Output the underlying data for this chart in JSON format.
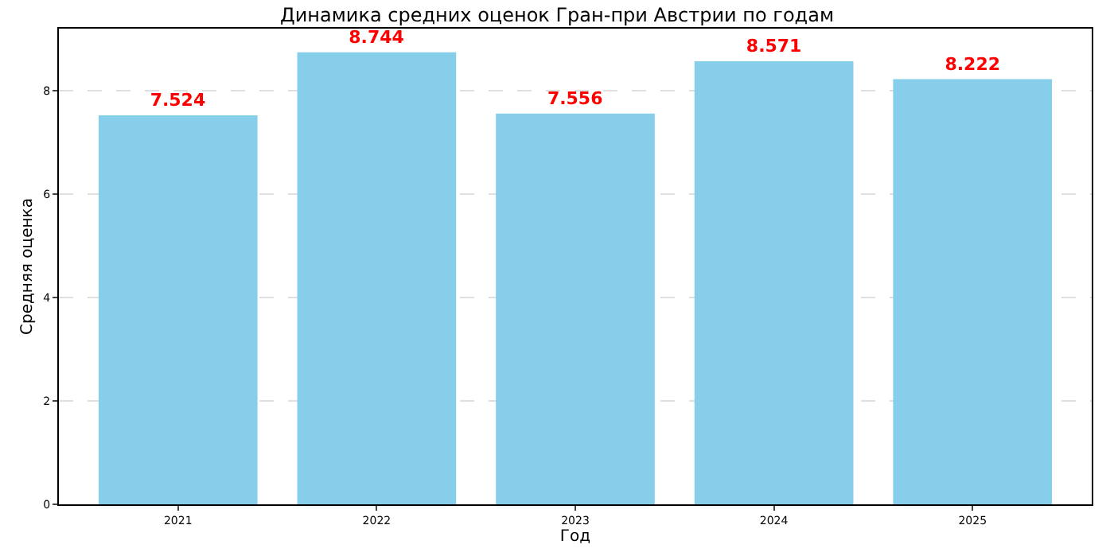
{
  "chart_data": {
    "type": "bar",
    "title": "Динамика средних оценок Гран-при Австрии по годам",
    "xlabel": "Год",
    "ylabel": "Средняя оценка",
    "categories": [
      "2021",
      "2022",
      "2023",
      "2024",
      "2025"
    ],
    "values": [
      7.524,
      8.744,
      7.556,
      8.571,
      8.222
    ],
    "color": "#87ceeb",
    "data_labels": true,
    "ylim": [
      0,
      9.2
    ],
    "yticks": [
      0,
      2,
      4,
      6,
      8
    ],
    "grid": "y"
  }
}
